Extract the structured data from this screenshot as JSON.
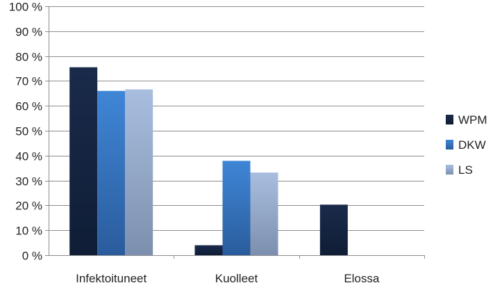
{
  "chart_data": {
    "type": "bar",
    "categories": [
      "Infektoituneet",
      "Kuolleet",
      "Elossa"
    ],
    "series": [
      {
        "name": "WPM",
        "values": [
          75.5,
          4,
          20.3
        ]
      },
      {
        "name": "DKW",
        "values": [
          66,
          37.9,
          0
        ]
      },
      {
        "name": "LS",
        "values": [
          66.6,
          33.2,
          0
        ]
      }
    ],
    "ylim": [
      0,
      100
    ],
    "yticks": [
      0,
      10,
      20,
      30,
      40,
      50,
      60,
      70,
      80,
      90,
      100
    ],
    "ytick_labels": [
      "0 %",
      "10 %",
      "20 %",
      "30 %",
      "40 %",
      "50 %",
      "60 %",
      "70 %",
      "80 %",
      "90 %",
      "100 %"
    ],
    "grid": true,
    "legend_position": "right",
    "colors": {
      "WPM": [
        "#1a2a4a",
        "#0f1d36"
      ],
      "DKW": [
        "#3f86d6",
        "#2a5c9c"
      ],
      "LS": [
        "#a9bedf",
        "#7d8fae"
      ]
    }
  }
}
